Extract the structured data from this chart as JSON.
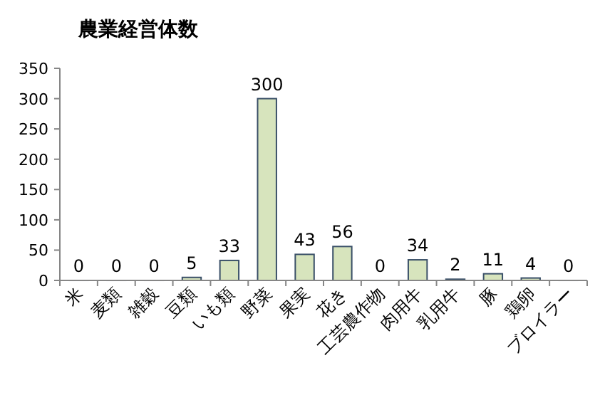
{
  "chart_data": {
    "type": "bar",
    "title": "農業経営体数",
    "categories": [
      "米",
      "麦類",
      "雑穀",
      "豆類",
      "いも類",
      "野菜",
      "果実",
      "花き",
      "工芸農作物",
      "肉用牛",
      "乳用牛",
      "豚",
      "鶏卵",
      "ブロイラー"
    ],
    "values": [
      0,
      0,
      0,
      5,
      33,
      300,
      43,
      56,
      0,
      34,
      2,
      11,
      4,
      0
    ],
    "color": "#d7e4bd",
    "ylim": [
      0,
      350
    ],
    "yticks": [
      0,
      50,
      100,
      150,
      200,
      250,
      300,
      350
    ],
    "data_labels": true
  }
}
